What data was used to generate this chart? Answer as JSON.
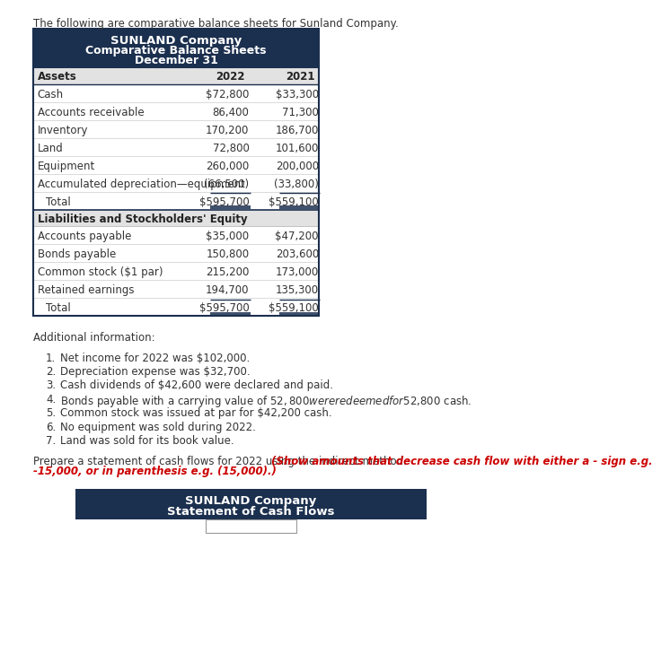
{
  "intro_text": "The following are comparative balance sheets for Sunland Company.",
  "header_title1": "SUNLAND Company",
  "header_title2": "Comparative Balance Sheets",
  "header_title3": "December 31",
  "header_bg": "#1b2f4e",
  "header_text_color": "#ffffff",
  "subheader_bg": "#e2e2e2",
  "page_bg": "#ffffff",
  "table_bg": "#ffffff",
  "col_header_2022": "2022",
  "col_header_2021": "2021",
  "assets_label": "Assets",
  "assets_rows": [
    [
      "Cash",
      "$72,800",
      "$33,300"
    ],
    [
      "Accounts receivable",
      "86,400",
      "71,300"
    ],
    [
      "Inventory",
      "170,200",
      "186,700"
    ],
    [
      "Land",
      "72,800",
      "101,600"
    ],
    [
      "Equipment",
      "260,000",
      "200,000"
    ],
    [
      "Accumulated depreciation—equipment",
      "(66,500)",
      "(33,800)"
    ],
    [
      "  Total",
      "$595,700",
      "$559,100"
    ]
  ],
  "liabilities_label": "Liabilities and Stockholders' Equity",
  "liabilities_rows": [
    [
      "Accounts payable",
      "$35,000",
      "$47,200"
    ],
    [
      "Bonds payable",
      "150,800",
      "203,600"
    ],
    [
      "Common stock ($1 par)",
      "215,200",
      "173,000"
    ],
    [
      "Retained earnings",
      "194,700",
      "135,300"
    ],
    [
      "  Total",
      "$595,700",
      "$559,100"
    ]
  ],
  "additional_info_label": "Additional information:",
  "additional_items": [
    "Net income for 2022 was $102,000.",
    "Depreciation expense was $32,700.",
    "Cash dividends of $42,600 were declared and paid.",
    "Bonds payable with a carrying value of $52,800 were redeemed for $52,800 cash.",
    "Common stock was issued at par for $42,200 cash.",
    "No equipment was sold during 2022.",
    "Land was sold for its book value."
  ],
  "prepare_text_normal": "Prepare a statement of cash flows for 2022 using the indirect method. ",
  "prepare_text_italic_red": "(Show amounts that decrease cash flow with either a - sign e.g.\n-15,000, or in parenthesis e.g. (15,000).)",
  "bottom_header1": "SUNLAND Company",
  "bottom_header2": "Statement of Cash Flows",
  "table_border_color": "#1b2f4e",
  "total_line_color": "#1b2f4e",
  "row_divider_color": "#cccccc"
}
